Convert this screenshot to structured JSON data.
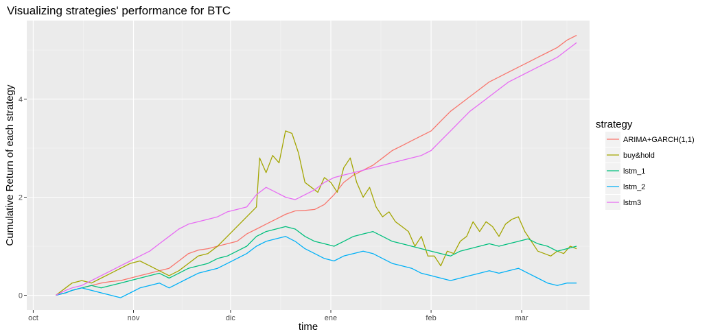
{
  "chart_data": {
    "type": "line",
    "title": "Visualizing strategies' performance for BTC",
    "xlabel": "time",
    "ylabel": "Cumulative Return of each strategy",
    "x_unit": "days since Oct 1",
    "xlim": [
      -2,
      172
    ],
    "ylim": [
      -0.3,
      5.6
    ],
    "x_ticks": [
      {
        "label": "oct",
        "value": 0
      },
      {
        "label": "nov",
        "value": 31
      },
      {
        "label": "dic",
        "value": 61
      },
      {
        "label": "ene",
        "value": 92
      },
      {
        "label": "feb",
        "value": 123
      },
      {
        "label": "mar",
        "value": 151
      }
    ],
    "y_ticks": [
      0,
      2,
      4
    ],
    "legend": {
      "title": "strategy",
      "position": "right"
    },
    "series": [
      {
        "name": "ARIMA+GARCH(1,1)",
        "color": "#F8766D",
        "x": [
          7,
          10,
          12,
          15,
          18,
          21,
          24,
          27,
          30,
          33,
          36,
          39,
          42,
          45,
          48,
          51,
          54,
          57,
          60,
          63,
          66,
          69,
          72,
          75,
          78,
          81,
          84,
          87,
          90,
          93,
          96,
          99,
          102,
          105,
          108,
          111,
          114,
          117,
          120,
          123,
          126,
          129,
          132,
          135,
          138,
          141,
          144,
          147,
          150,
          153,
          156,
          159,
          162,
          165,
          168
        ],
        "y": [
          0,
          0.05,
          0.1,
          0.15,
          0.2,
          0.25,
          0.28,
          0.3,
          0.35,
          0.4,
          0.45,
          0.5,
          0.55,
          0.7,
          0.85,
          0.92,
          0.95,
          1.0,
          1.05,
          1.1,
          1.25,
          1.35,
          1.45,
          1.55,
          1.65,
          1.72,
          1.73,
          1.75,
          1.85,
          2.05,
          2.3,
          2.45,
          2.55,
          2.65,
          2.8,
          2.95,
          3.05,
          3.15,
          3.25,
          3.35,
          3.55,
          3.75,
          3.9,
          4.05,
          4.2,
          4.35,
          4.45,
          4.55,
          4.65,
          4.75,
          4.85,
          4.95,
          5.05,
          5.2,
          5.3
        ]
      },
      {
        "name": "buy&hold",
        "color": "#A3A500",
        "x": [
          7,
          10,
          12,
          15,
          18,
          21,
          24,
          27,
          30,
          33,
          36,
          39,
          42,
          45,
          48,
          51,
          54,
          57,
          60,
          63,
          66,
          69,
          70,
          72,
          74,
          76,
          78,
          80,
          82,
          84,
          86,
          88,
          90,
          92,
          94,
          96,
          98,
          100,
          102,
          104,
          106,
          108,
          110,
          112,
          114,
          116,
          118,
          120,
          122,
          124,
          126,
          128,
          130,
          132,
          134,
          136,
          138,
          140,
          142,
          144,
          146,
          148,
          150,
          152,
          154,
          156,
          158,
          160,
          162,
          164,
          166,
          168
        ],
        "y": [
          0,
          0.15,
          0.25,
          0.3,
          0.25,
          0.35,
          0.45,
          0.55,
          0.65,
          0.7,
          0.6,
          0.5,
          0.4,
          0.5,
          0.65,
          0.8,
          0.85,
          1.0,
          1.2,
          1.4,
          1.6,
          1.8,
          2.8,
          2.5,
          2.85,
          2.7,
          3.35,
          3.3,
          2.9,
          2.3,
          2.2,
          2.1,
          2.4,
          2.3,
          2.1,
          2.6,
          2.8,
          2.3,
          2.0,
          2.2,
          1.8,
          1.6,
          1.7,
          1.5,
          1.4,
          1.3,
          1.0,
          1.2,
          0.8,
          0.8,
          0.6,
          0.9,
          0.85,
          1.1,
          1.2,
          1.5,
          1.3,
          1.5,
          1.4,
          1.2,
          1.45,
          1.55,
          1.6,
          1.3,
          1.1,
          0.9,
          0.85,
          0.8,
          0.9,
          0.85,
          1.0,
          0.95
        ]
      },
      {
        "name": "lstm_1",
        "color": "#00BF7D",
        "x": [
          7,
          10,
          12,
          15,
          18,
          21,
          24,
          27,
          30,
          33,
          36,
          39,
          42,
          45,
          48,
          51,
          54,
          57,
          60,
          63,
          66,
          69,
          72,
          75,
          78,
          81,
          84,
          87,
          90,
          93,
          96,
          99,
          102,
          105,
          108,
          111,
          114,
          117,
          120,
          123,
          126,
          129,
          132,
          135,
          138,
          141,
          144,
          147,
          150,
          153,
          156,
          159,
          162,
          165,
          168
        ],
        "y": [
          0,
          0.05,
          0.1,
          0.15,
          0.2,
          0.15,
          0.2,
          0.25,
          0.3,
          0.35,
          0.4,
          0.45,
          0.35,
          0.45,
          0.55,
          0.6,
          0.65,
          0.75,
          0.8,
          0.9,
          1.0,
          1.2,
          1.3,
          1.35,
          1.4,
          1.35,
          1.2,
          1.1,
          1.05,
          1.0,
          1.1,
          1.2,
          1.25,
          1.3,
          1.2,
          1.1,
          1.05,
          1.0,
          0.95,
          0.9,
          0.85,
          0.8,
          0.9,
          0.95,
          1.0,
          1.05,
          1.0,
          1.05,
          1.1,
          1.15,
          1.05,
          1.0,
          0.9,
          0.95,
          1.0
        ]
      },
      {
        "name": "lstm_2",
        "color": "#00B0F6",
        "x": [
          7,
          10,
          12,
          15,
          18,
          21,
          24,
          27,
          30,
          33,
          36,
          39,
          42,
          45,
          48,
          51,
          54,
          57,
          60,
          63,
          66,
          69,
          72,
          75,
          78,
          81,
          84,
          87,
          90,
          93,
          96,
          99,
          102,
          105,
          108,
          111,
          114,
          117,
          120,
          123,
          126,
          129,
          132,
          135,
          138,
          141,
          144,
          147,
          150,
          153,
          156,
          159,
          162,
          165,
          168
        ],
        "y": [
          0,
          0.05,
          0.1,
          0.15,
          0.1,
          0.05,
          0.0,
          -0.05,
          0.05,
          0.15,
          0.2,
          0.25,
          0.15,
          0.25,
          0.35,
          0.45,
          0.5,
          0.55,
          0.65,
          0.75,
          0.85,
          1.0,
          1.1,
          1.15,
          1.2,
          1.1,
          0.95,
          0.85,
          0.75,
          0.7,
          0.8,
          0.85,
          0.9,
          0.85,
          0.75,
          0.65,
          0.6,
          0.55,
          0.45,
          0.4,
          0.35,
          0.3,
          0.35,
          0.4,
          0.45,
          0.5,
          0.45,
          0.5,
          0.55,
          0.45,
          0.35,
          0.25,
          0.2,
          0.25,
          0.25
        ]
      },
      {
        "name": "lstm3",
        "color": "#E76BF3",
        "x": [
          7,
          10,
          12,
          15,
          18,
          21,
          24,
          27,
          30,
          33,
          36,
          39,
          42,
          45,
          48,
          51,
          54,
          57,
          60,
          63,
          66,
          69,
          72,
          75,
          78,
          81,
          84,
          87,
          90,
          93,
          96,
          99,
          102,
          105,
          108,
          111,
          114,
          117,
          120,
          123,
          126,
          129,
          132,
          135,
          138,
          141,
          144,
          147,
          150,
          153,
          156,
          159,
          162,
          165,
          168
        ],
        "y": [
          0,
          0.1,
          0.15,
          0.2,
          0.3,
          0.4,
          0.5,
          0.6,
          0.7,
          0.8,
          0.9,
          1.05,
          1.2,
          1.35,
          1.45,
          1.5,
          1.55,
          1.6,
          1.7,
          1.75,
          1.8,
          2.05,
          2.2,
          2.1,
          2.0,
          1.95,
          2.05,
          2.15,
          2.3,
          2.4,
          2.45,
          2.5,
          2.55,
          2.6,
          2.65,
          2.7,
          2.75,
          2.8,
          2.85,
          2.95,
          3.15,
          3.35,
          3.55,
          3.75,
          3.9,
          4.05,
          4.2,
          4.35,
          4.45,
          4.55,
          4.65,
          4.75,
          4.85,
          5.0,
          5.15
        ]
      }
    ]
  }
}
